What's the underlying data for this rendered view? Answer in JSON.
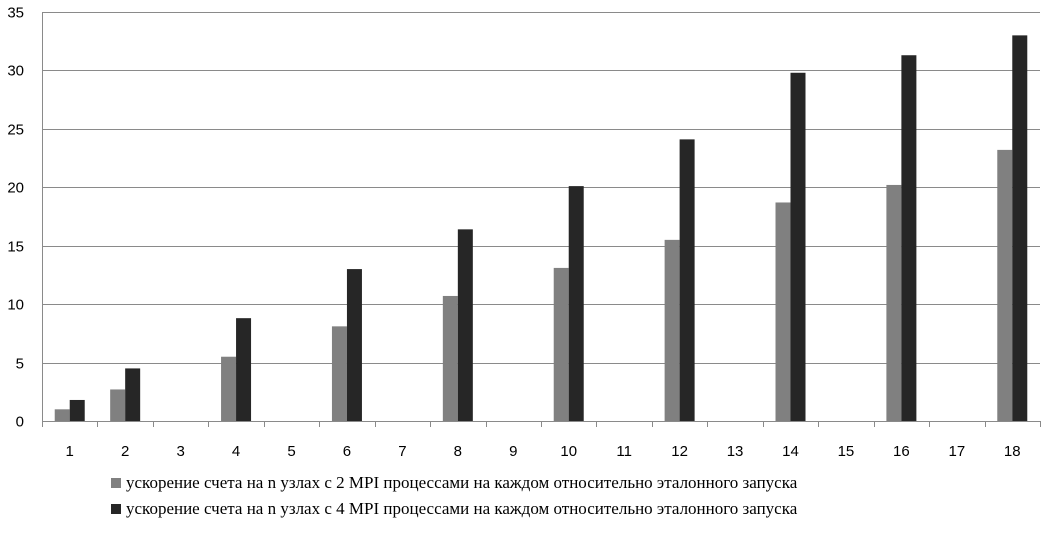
{
  "chart_data": {
    "type": "bar",
    "categories": [
      "1",
      "2",
      "3",
      "4",
      "5",
      "6",
      "7",
      "8",
      "9",
      "10",
      "11",
      "12",
      "13",
      "14",
      "15",
      "16",
      "17",
      "18"
    ],
    "series": [
      {
        "name": "ускорение счета на n узлах с 2 MPI процессами на каждом относительно эталонного запуска",
        "color": "#808080",
        "values": [
          1.0,
          2.7,
          null,
          5.5,
          null,
          8.1,
          null,
          10.7,
          null,
          13.1,
          null,
          15.5,
          null,
          18.7,
          null,
          20.2,
          null,
          23.2
        ]
      },
      {
        "name": "ускорение счета на n узлах с 4 MPI процессами на каждом относительно эталонного запуска",
        "color": "#262626",
        "values": [
          1.8,
          4.5,
          null,
          8.8,
          null,
          13.0,
          null,
          16.4,
          null,
          20.1,
          null,
          24.1,
          null,
          29.8,
          null,
          31.3,
          null,
          33.0
        ]
      }
    ],
    "yticks": [
      "0",
      "5",
      "10",
      "15",
      "20",
      "25",
      "30",
      "35"
    ],
    "ylim": [
      0,
      35
    ],
    "grid": true,
    "legend": "bottom"
  }
}
